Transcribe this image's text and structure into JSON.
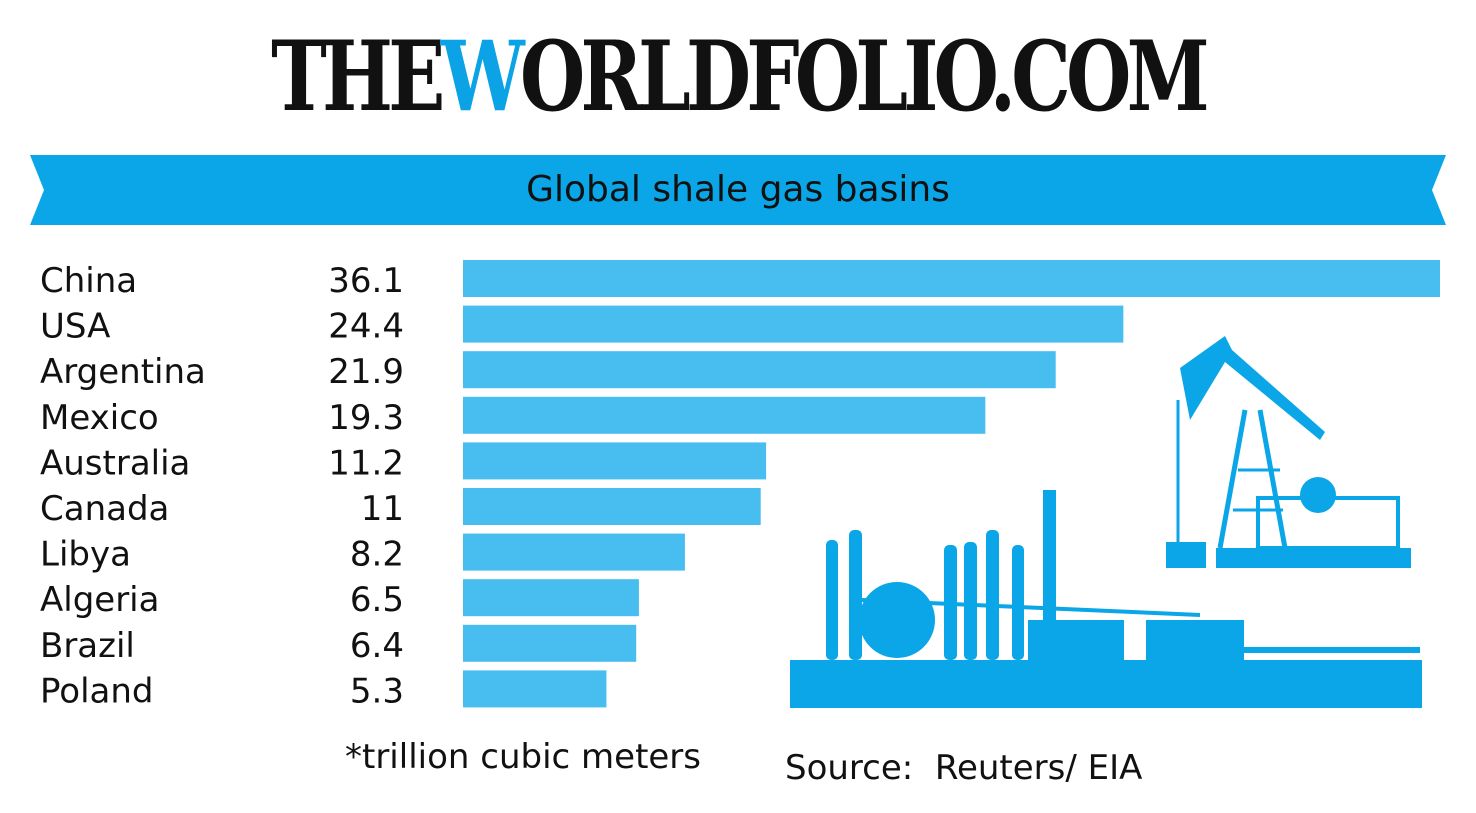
{
  "logo": {
    "part1": "THE",
    "part2": "W",
    "part3": "ORLDFOLIO.COM"
  },
  "colors": {
    "ribbon": "#0aa6e8",
    "bar": "#47bdf0",
    "illustration": "#0aa6e8",
    "text": "#111111"
  },
  "chart_data": {
    "type": "bar",
    "orientation": "horizontal",
    "title": "Global shale gas basins",
    "categories": [
      "China",
      "USA",
      "Argentina",
      "Mexico",
      "Australia",
      "Canada",
      "Libya",
      "Algeria",
      "Brazil",
      "Poland"
    ],
    "values": [
      36.1,
      24.4,
      21.9,
      19.3,
      11.2,
      11,
      8.2,
      6.5,
      6.4,
      5.3
    ],
    "value_labels": [
      "36.1",
      "24.4",
      "21.9",
      "19.3",
      "11.2",
      "11",
      "8.2",
      "6.5",
      "6.4",
      "5.3"
    ],
    "xlim": [
      0,
      36.1
    ],
    "grid": false,
    "unit_note": "*trillion cubic meters",
    "source": "Source:  Reuters/ EIA"
  },
  "illustration": {
    "icon": "oil-refinery-and-pump-jack-icon"
  }
}
